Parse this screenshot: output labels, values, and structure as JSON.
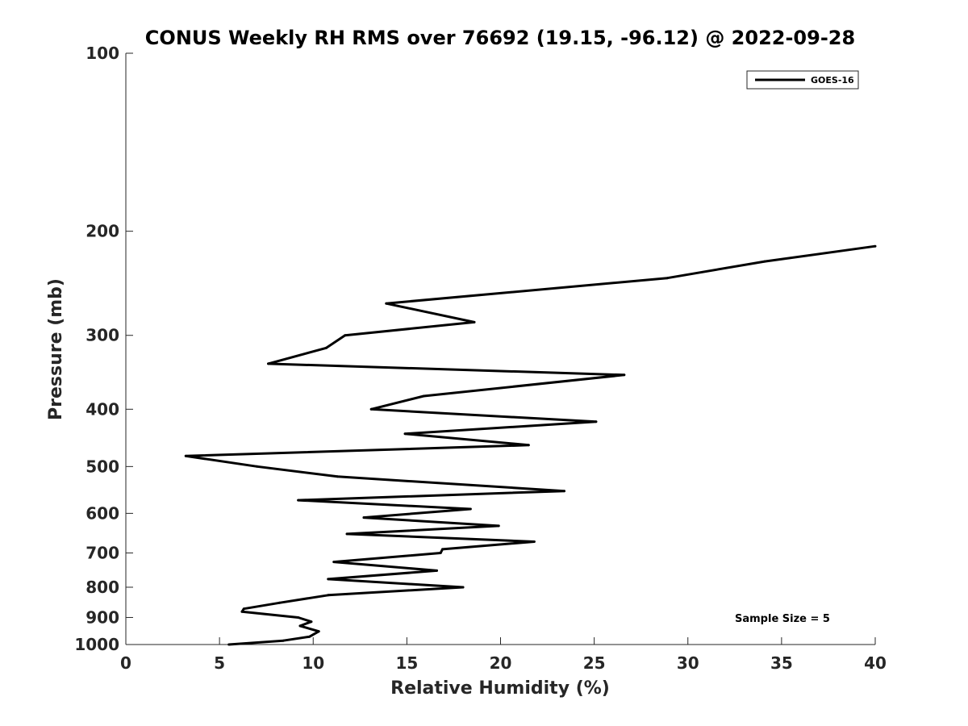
{
  "chart_data": {
    "type": "line",
    "title": "CONUS Weekly RH RMS over 76692 (19.15, -96.12) @ 2022-09-28",
    "xlabel": "Relative Humidity (%)",
    "ylabel": "Pressure (mb)",
    "xlim": [
      0,
      40
    ],
    "ylim": [
      100,
      1000
    ],
    "y_scale": "log",
    "y_reversed": true,
    "x_ticks": [
      "0",
      "5",
      "10",
      "15",
      "20",
      "25",
      "30",
      "35",
      "40"
    ],
    "y_ticks": [
      "100",
      "200",
      "300",
      "400",
      "500",
      "600",
      "700",
      "800",
      "900",
      "1000"
    ],
    "grid": false,
    "legend_position": "top-right",
    "annotation": "Sample Size = 5",
    "series": [
      {
        "name": "GOES-16",
        "color": "#000000",
        "x": [
          40.0,
          34.1,
          28.9,
          13.9,
          18.6,
          11.7,
          10.7,
          7.6,
          26.6,
          15.9,
          13.1,
          25.1,
          14.9,
          21.5,
          3.2,
          7.0,
          11.3,
          23.4,
          9.2,
          18.4,
          12.7,
          19.9,
          11.8,
          21.8,
          16.9,
          16.8,
          11.1,
          16.6,
          10.8,
          18.0,
          10.8,
          8.2,
          6.3,
          6.2,
          9.2,
          9.9,
          9.3,
          10.3,
          9.8,
          8.4,
          5.5
        ],
        "y": [
          212,
          225,
          240,
          265,
          285,
          300,
          315,
          335,
          350,
          380,
          400,
          420,
          440,
          460,
          480,
          500,
          520,
          550,
          570,
          590,
          610,
          630,
          650,
          670,
          690,
          700,
          725,
          750,
          775,
          800,
          825,
          850,
          870,
          880,
          900,
          915,
          930,
          950,
          970,
          985,
          1000
        ]
      }
    ]
  }
}
